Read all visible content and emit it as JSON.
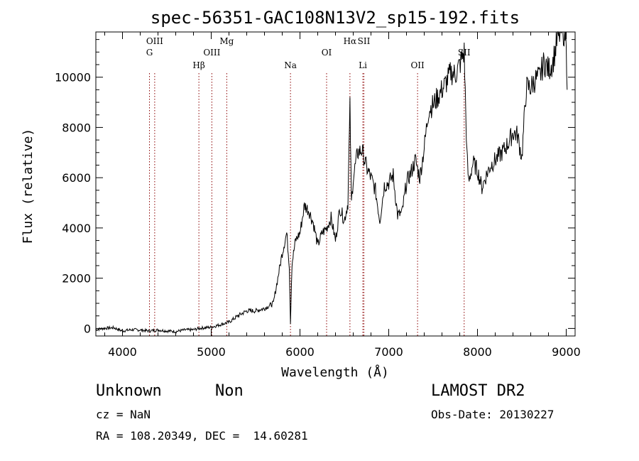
{
  "chart_data": {
    "type": "line",
    "title": "spec-56351-GAC108N13V2_sp15-192.fits",
    "xlabel": "Wavelength (Å)",
    "ylabel": "Flux (relative)",
    "xlim": [
      3700,
      9100
    ],
    "ylim": [
      -300,
      11800
    ],
    "x_ticks": [
      4000,
      5000,
      6000,
      7000,
      8000,
      9000
    ],
    "x_tick_labels": [
      "4000",
      "5000",
      "6000",
      "7000",
      "8000",
      "9000"
    ],
    "y_ticks": [
      0,
      2000,
      4000,
      6000,
      8000,
      10000
    ],
    "y_tick_labels": [
      "0",
      "2000",
      "4000",
      "6000",
      "8000",
      "10000"
    ],
    "grid": false,
    "line_color": "#000000",
    "marker_color": "#8b0000",
    "series": [
      {
        "x": [
          3700,
          3800,
          3900,
          4000,
          4100,
          4200,
          4300,
          4400,
          4500,
          4600,
          4700,
          4800,
          4860,
          4900,
          5000,
          5100,
          5200,
          5300,
          5400,
          5500,
          5600,
          5700,
          5750,
          5800,
          5850,
          5880,
          5893,
          5910,
          5950,
          6000,
          6050,
          6100,
          6150,
          6200,
          6250,
          6300,
          6350,
          6400,
          6450,
          6500,
          6540,
          6563,
          6580,
          6600,
          6650,
          6700,
          6750,
          6800,
          6850,
          6900,
          6950,
          7000,
          7050,
          7100,
          7150,
          7200,
          7250,
          7300,
          7350,
          7400,
          7450,
          7500,
          7550,
          7600,
          7650,
          7700,
          7750,
          7800,
          7850,
          7880,
          7900,
          7950,
          8000,
          8050,
          8100,
          8150,
          8200,
          8250,
          8300,
          8350,
          8400,
          8450,
          8500,
          8550,
          8600,
          8650,
          8700,
          8750,
          8800,
          8850,
          8900,
          8950,
          9000,
          9010
        ],
        "y": [
          -50,
          10,
          30,
          -100,
          -50,
          -60,
          -100,
          -60,
          -100,
          -120,
          -60,
          -50,
          0,
          20,
          50,
          150,
          250,
          500,
          700,
          700,
          800,
          1000,
          2000,
          3000,
          3800,
          2500,
          200,
          2600,
          3500,
          3800,
          4900,
          4700,
          4200,
          3300,
          3800,
          4000,
          4400,
          3500,
          4800,
          4300,
          5000,
          8800,
          5000,
          6000,
          7000,
          7100,
          6400,
          6000,
          5500,
          4300,
          5700,
          5800,
          6100,
          4500,
          4600,
          5800,
          6200,
          6700,
          6000,
          7200,
          8700,
          8900,
          9200,
          9500,
          9800,
          10200,
          10100,
          10500,
          11000,
          7000,
          5800,
          6600,
          6300,
          5600,
          6100,
          6500,
          6700,
          6900,
          7100,
          7400,
          7800,
          7700,
          6800,
          9600,
          9600,
          9900,
          10000,
          10600,
          10300,
          10600,
          11500,
          11900,
          11700,
          9500
        ]
      }
    ],
    "lines": [
      {
        "name": "G",
        "wavelength": 4304,
        "row": 2
      },
      {
        "name": "OIII",
        "wavelength": 4363,
        "row": 1
      },
      {
        "name": "Hβ",
        "wavelength": 4861,
        "row": 3
      },
      {
        "name": "OIII",
        "wavelength": 5007,
        "row": 2
      },
      {
        "name": "Mg",
        "wavelength": 5175,
        "row": 1
      },
      {
        "name": "Na",
        "wavelength": 5893,
        "row": 3
      },
      {
        "name": "OI",
        "wavelength": 6300,
        "row": 2
      },
      {
        "name": "Hα",
        "wavelength": 6563,
        "row": 1
      },
      {
        "name": "SII",
        "wavelength": 6720,
        "row": 1
      },
      {
        "name": "Li",
        "wavelength": 6708,
        "row": 3
      },
      {
        "name": "OII",
        "wavelength": 7325,
        "row": 3
      },
      {
        "name": "SII",
        "wavelength": 7850,
        "row": 2
      }
    ]
  },
  "info": {
    "class": "Unknown",
    "subclass": "Non",
    "cz": "cz = NaN",
    "coords": "RA = 108.20349, DEC =  14.60281",
    "survey": "LAMOST DR2",
    "obs_date": "Obs-Date: 20130227"
  }
}
